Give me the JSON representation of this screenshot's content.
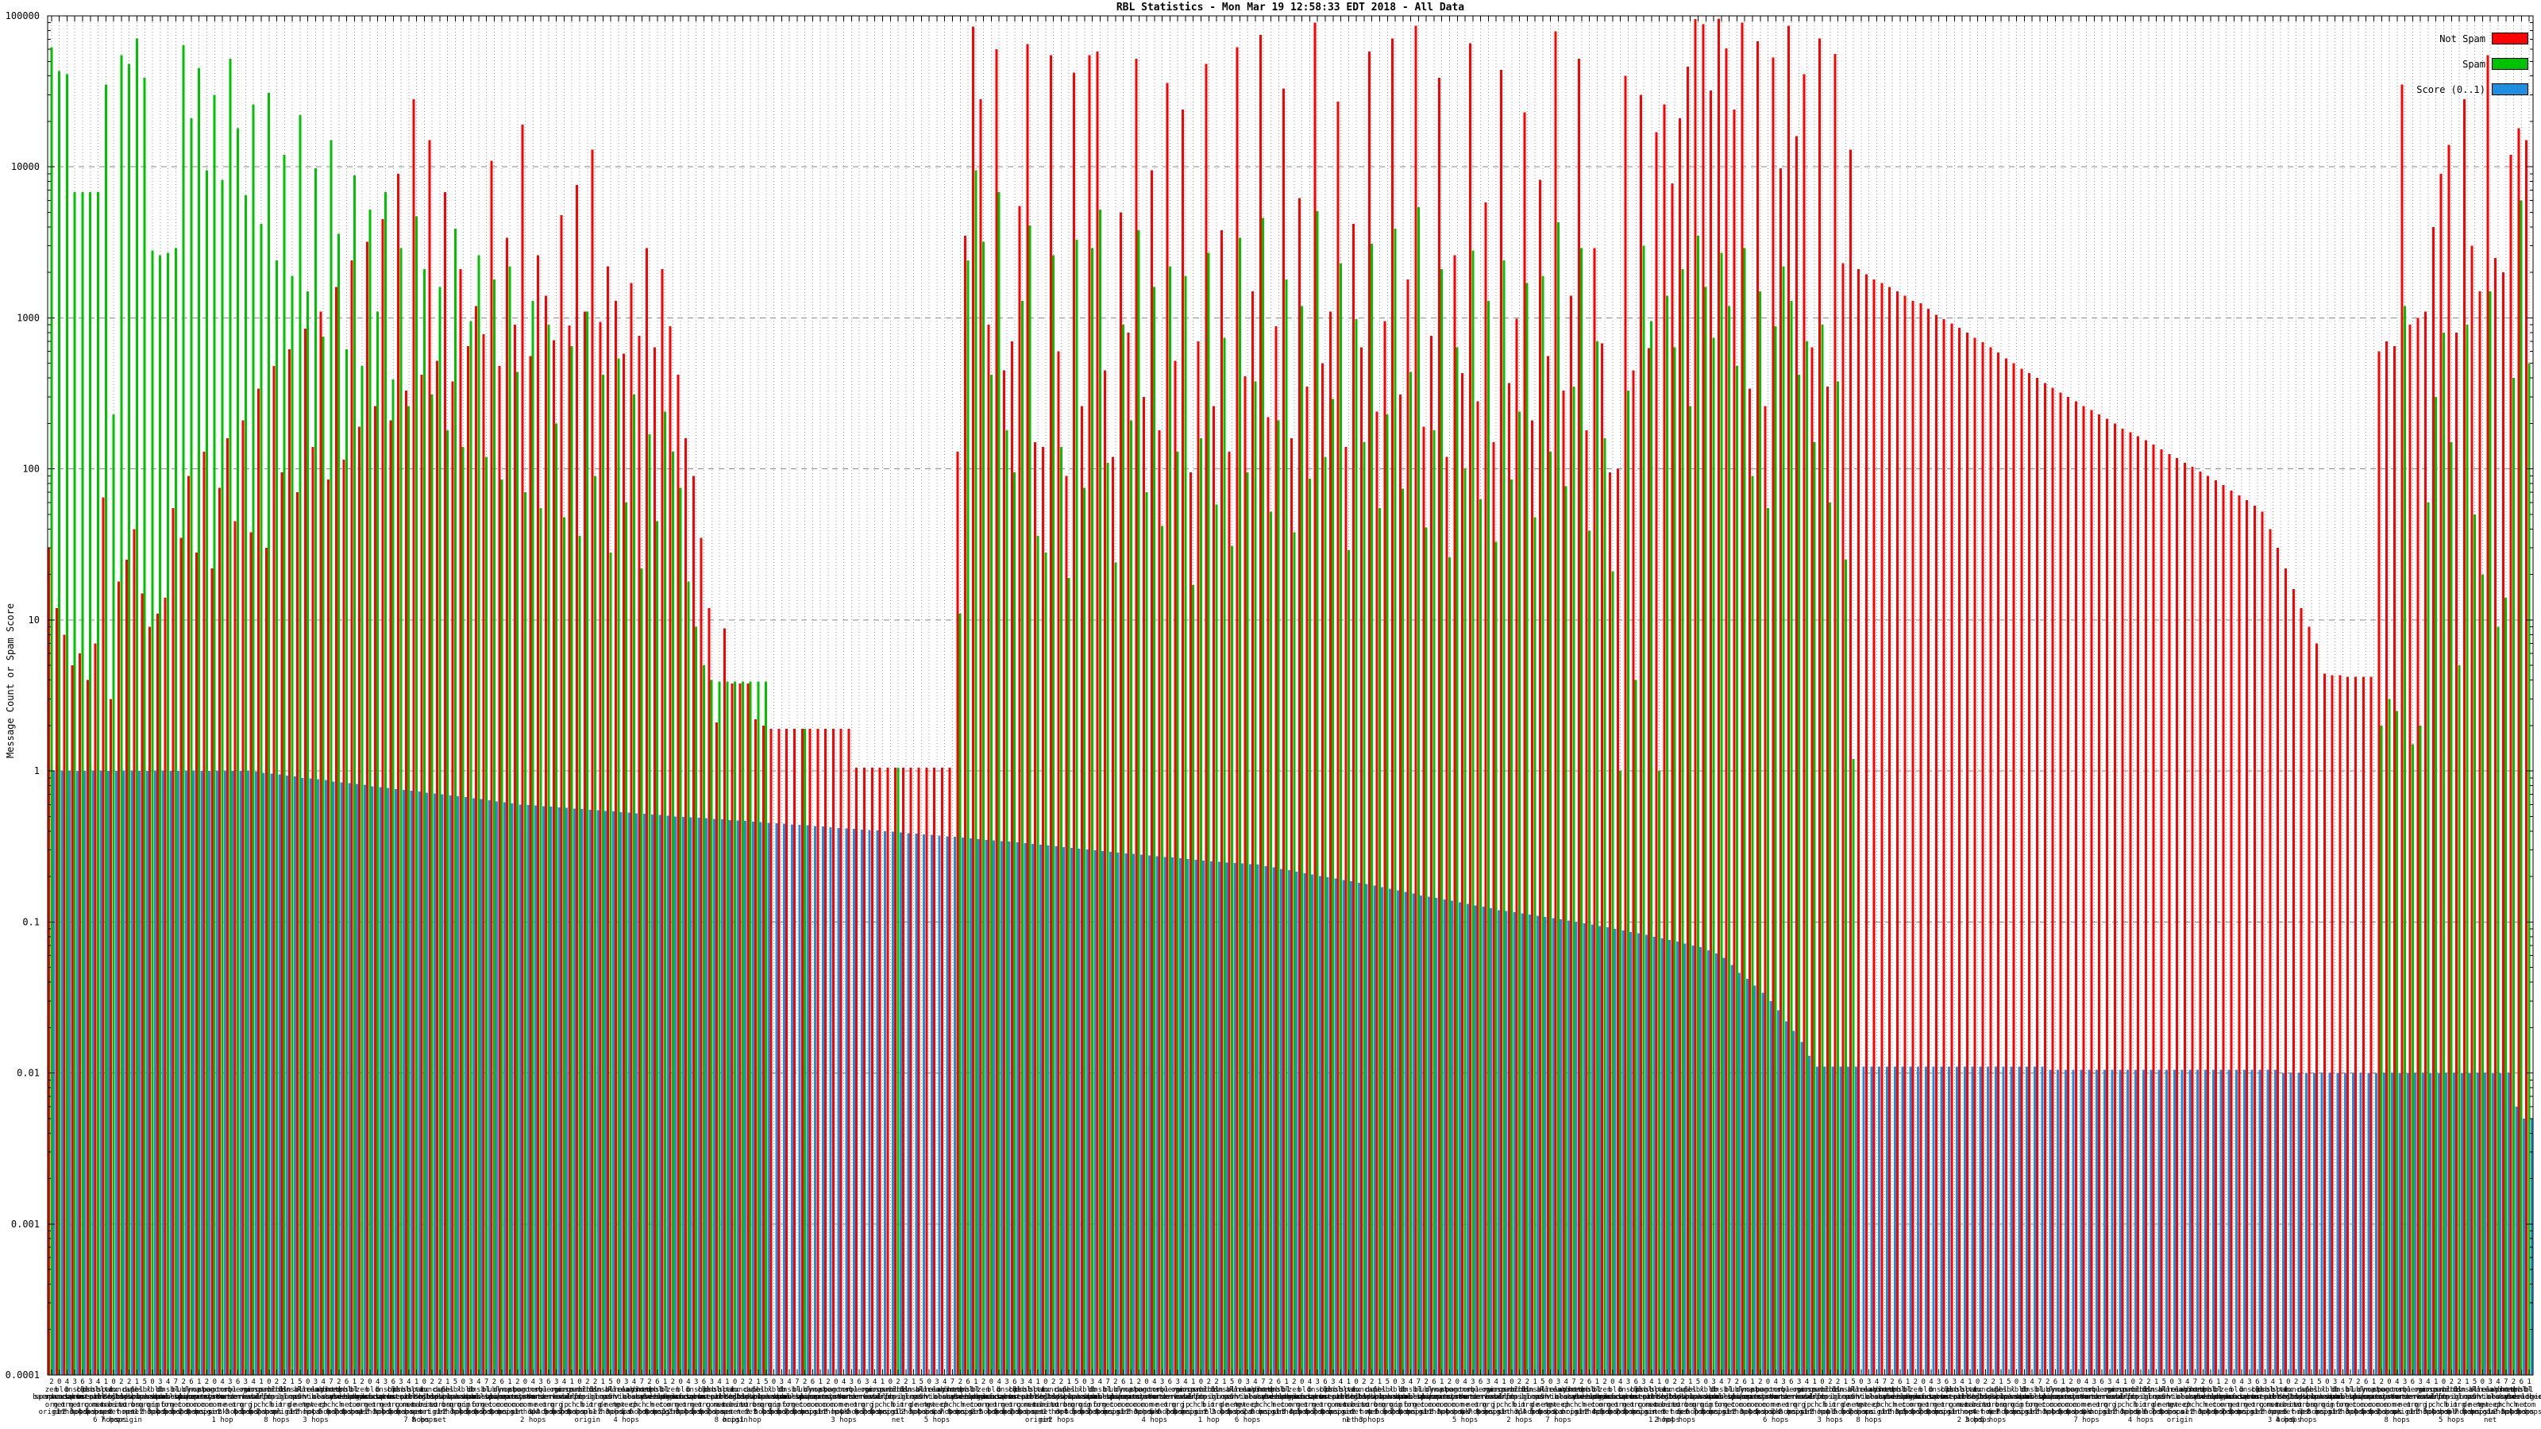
{
  "title": "RBL Statistics - Mon Mar 19 12:58:33 EDT 2018 - All Data",
  "y_axis": {
    "label": "Message Count or Spam Score",
    "ticks": [
      "100000",
      "10000",
      "1000",
      "100",
      "10",
      "1",
      "0.1",
      "0.01",
      "0.001",
      "0.0001"
    ]
  },
  "legend": [
    {
      "label": "Not Spam",
      "color": "#ff0000"
    },
    {
      "label": "Spam",
      "color": "#00c300"
    },
    {
      "label": "Score (0..1)",
      "color": "#1e8fe0"
    }
  ],
  "chart_data": {
    "type": "bar",
    "subtype": "impulses",
    "title": "RBL Statistics - Mon Mar 19 12:58:33 EDT 2018 - All Data",
    "xlabel": "",
    "ylabel": "Message Count or Spam Score",
    "yscale": "log",
    "ylim": [
      0.0001,
      100000
    ],
    "grid": true,
    "legend_position": "top-right",
    "n_bars": 320,
    "bar_pixel_pitch": 9.78,
    "category_note_rows": "2043634102215034726120436341022150347261204363410221503472612043634102215034726120436341022150347261204363410221503472612043634102215034726120436341022150347261204363410221503472612043634102215034726120436341022150347261204363410221503472612043634102215034726120436341022150347261204363410221503472612043634102215034726120",
    "category_pool": [
      "zen.spamhaus.org",
      "bl.spamcop.net",
      "b.barracudacentral.org",
      "dnsbl.sorbs.net",
      "cbl.abuseat.org",
      "psbl.surriel.com",
      "dnsbl-1.uceprotect.net",
      "spam.dnsbl.sorbs.net",
      "ix.dnsbl.manitu.net",
      "truncate.gbudb.net",
      "dul.dnsbl.sorbs.net",
      "pbl.spamhaus.org",
      "sbl.spamhaus.org",
      "xbl.spamhaus.org",
      "db.wpbl.info",
      "dnsbl.dronebl.org",
      "bl.mailspike.net",
      "ubl.unsubscore.com",
      "dyna.spamrats.com",
      "noptr.spamrats.com",
      "spam.spamrats.com",
      "bogons.cymru.com",
      "tor.dan.me.uk",
      "rbl.interserver.net",
      "query.senderbase.org",
      "opm.tornevall.org",
      "virus.rbl.jp",
      "wormrbl.imp.ch",
      "spamrbl.imp.ch",
      "virbl.dnsbl.bit.nl",
      "dsn.rfc-ignorant.org",
      "dnsbl.inps.de",
      "all.s5h.net",
      "korea.services.net",
      "relays.bl.gweep.ca",
      "combined.abuse.ch",
      "drone.abuse.ch",
      "httpbl.abuse.ch",
      "dnsbl.cyberlogic.net",
      "bl.deadbeef.com"
    ],
    "category_suffixes": [
      "origin",
      "net",
      "1 hop",
      "2 hops",
      "3 hops",
      "4 hops",
      "5 hops",
      "6 hops",
      "7 hops",
      "8 hops"
    ],
    "series": [
      {
        "name": "Not Spam",
        "color": "#ff0000",
        "values": [
          30,
          12,
          8,
          5,
          6,
          4,
          7,
          65,
          3,
          18,
          25,
          40,
          15,
          9,
          11,
          14,
          55,
          35,
          90,
          28,
          130,
          22,
          75,
          160,
          45,
          210,
          38,
          340,
          30,
          480,
          95,
          620,
          70,
          850,
          140,
          1100,
          85,
          1600,
          115,
          2400,
          190,
          3200,
          260,
          4500,
          210,
          9000,
          330,
          28000,
          420,
          15000,
          520,
          6800,
          380,
          2100,
          650,
          1200,
          780,
          11000,
          480,
          3400,
          900,
          19000,
          560,
          2600,
          1400,
          710,
          4800,
          890,
          7600,
          1100,
          13000,
          940,
          2200,
          1300,
          580,
          1700,
          760,
          2900,
          640,
          2100,
          880,
          420,
          160,
          90,
          35,
          12,
          2.1,
          8.8,
          3.8,
          3.8,
          3.8,
          2.2,
          2,
          1.9,
          1.9,
          1.9,
          1.9,
          1.9,
          1.9,
          1.9,
          1.9,
          1.9,
          1.9,
          1.9,
          1.05,
          1.05,
          1.05,
          1.05,
          1.05,
          1.05,
          1.05,
          1.05,
          1.05,
          1.05,
          1.05,
          1.05,
          1.05,
          130,
          3500,
          85000,
          28000,
          900,
          60000,
          450,
          700,
          5500,
          65000,
          150,
          140,
          55000,
          600,
          90,
          42000,
          260,
          55000,
          58000,
          450,
          120,
          5000,
          800,
          52000,
          300,
          9500,
          180,
          36000,
          520,
          24000,
          95,
          700,
          48000,
          260,
          3800,
          130,
          62000,
          410,
          1500,
          75000,
          220,
          880,
          33000,
          160,
          6200,
          350,
          90000,
          500,
          1100,
          27000,
          140,
          4200,
          640,
          58000,
          240,
          950,
          71000,
          310,
          1800,
          86000,
          190,
          760,
          39000,
          120,
          2600,
          430,
          66000,
          280,
          5800,
          150,
          44000,
          370,
          990,
          23000,
          210,
          8200,
          560,
          79000,
          330,
          1400,
          52000,
          180,
          2900,
          680,
          95,
          100,
          40000,
          450,
          30000,
          630,
          17000,
          26000,
          7800,
          21000,
          46000,
          95000,
          88000,
          32000,
          96000,
          61000,
          24000,
          90000,
          340,
          68000,
          260,
          53000,
          9800,
          86000,
          16000,
          41000,
          640,
          71000,
          350,
          56000,
          2300,
          13000,
          2100,
          1950,
          1800,
          1700,
          1600,
          1500,
          1400,
          1300,
          1250,
          1150,
          1050,
          980,
          920,
          860,
          800,
          740,
          690,
          640,
          590,
          540,
          500,
          460,
          430,
          400,
          370,
          345,
          320,
          300,
          280,
          260,
          245,
          230,
          215,
          200,
          185,
          175,
          165,
          155,
          145,
          135,
          125,
          118,
          110,
          103,
          96,
          90,
          84,
          78,
          72,
          67,
          62,
          57,
          52,
          40,
          30,
          22,
          16,
          12,
          9,
          7,
          4.4,
          4.3,
          4.3,
          4.2,
          4.2,
          4.2,
          4.2,
          600,
          700,
          650,
          35000,
          900,
          1000,
          1100,
          4000,
          9000,
          14000,
          800,
          28000,
          3000,
          1500,
          55000,
          2500,
          2000,
          12000,
          18000,
          15000
        ]
      },
      {
        "name": "Spam",
        "color": "#00c300",
        "values": [
          62000,
          43000,
          41000,
          6800,
          6800,
          6800,
          6800,
          35000,
          230,
          55000,
          48000,
          71000,
          39000,
          2800,
          2600,
          2700,
          2900,
          64000,
          21000,
          45000,
          9500,
          30000,
          8200,
          52000,
          18000,
          6500,
          26000,
          4200,
          31000,
          2400,
          12000,
          1900,
          22000,
          1500,
          9800,
          750,
          15000,
          3600,
          620,
          8800,
          480,
          5200,
          1100,
          6800,
          390,
          2900,
          260,
          4700,
          2100,
          310,
          1600,
          180,
          3900,
          140,
          950,
          2600,
          120,
          1800,
          85,
          2200,
          440,
          70,
          1300,
          55,
          900,
          200,
          48,
          650,
          36,
          1100,
          90,
          420,
          28,
          540,
          60,
          310,
          22,
          170,
          45,
          240,
          130,
          75,
          18,
          9,
          5,
          4,
          3.9,
          3.9,
          3.9,
          3.9,
          3.9,
          3.9,
          3.9,
          0,
          0,
          0,
          0,
          1.9,
          0,
          0,
          0,
          0,
          0,
          0,
          0,
          0,
          0,
          0,
          0,
          1.05,
          0,
          0,
          0,
          0,
          0,
          0,
          0,
          11,
          2400,
          9500,
          3200,
          420,
          6800,
          180,
          95,
          1300,
          4100,
          36,
          28,
          2600,
          140,
          19,
          3300,
          75,
          2900,
          5200,
          110,
          24,
          900,
          210,
          3800,
          70,
          1600,
          42,
          2200,
          130,
          1900,
          17,
          160,
          2700,
          58,
          740,
          31,
          3400,
          95,
          380,
          4600,
          52,
          210,
          1800,
          38,
          1200,
          86,
          5100,
          120,
          290,
          2300,
          29,
          980,
          150,
          3100,
          55,
          230,
          3900,
          74,
          440,
          5400,
          41,
          180,
          2100,
          26,
          640,
          100,
          2800,
          63,
          1300,
          33,
          2400,
          85,
          240,
          1700,
          48,
          1900,
          130,
          4300,
          77,
          350,
          2900,
          39,
          700,
          160,
          21,
          1,
          330,
          4,
          3000,
          950,
          1,
          1400,
          640,
          2100,
          260,
          3500,
          1600,
          740,
          2700,
          1200,
          480,
          2900,
          90,
          1500,
          55,
          880,
          2200,
          1300,
          420,
          700,
          150,
          900,
          60,
          380,
          25,
          1.2,
          0,
          0,
          0,
          0,
          0,
          0,
          0,
          0,
          0,
          0,
          0,
          0,
          0,
          0,
          0,
          0,
          0,
          0,
          0,
          0,
          0,
          0,
          0,
          0,
          0,
          0,
          0,
          0,
          0,
          0,
          0,
          0,
          0,
          0,
          0,
          0,
          0,
          0,
          0,
          0,
          0,
          0,
          0,
          0,
          0,
          0,
          0,
          0,
          0,
          0,
          0,
          0,
          0,
          0,
          0,
          0,
          0,
          0,
          0,
          0,
          0,
          0,
          0,
          0,
          0,
          0,
          0,
          2,
          3,
          2.5,
          1200,
          1.5,
          2,
          60,
          300,
          800,
          150,
          5,
          900,
          50,
          20,
          1500,
          9,
          14,
          400,
          6000,
          500
        ]
      },
      {
        "name": "Score (0..1)",
        "color": "#1e8fe0",
        "values": [
          1,
          1,
          1,
          1,
          1,
          1,
          1,
          1,
          1,
          1,
          1,
          1,
          1,
          1,
          1,
          1,
          1,
          1,
          1,
          1,
          1,
          1,
          1,
          1,
          1,
          1,
          0.99,
          0.97,
          0.96,
          0.95,
          0.93,
          0.92,
          0.9,
          0.89,
          0.88,
          0.87,
          0.85,
          0.84,
          0.83,
          0.82,
          0.81,
          0.79,
          0.78,
          0.77,
          0.76,
          0.75,
          0.74,
          0.73,
          0.72,
          0.71,
          0.7,
          0.69,
          0.68,
          0.67,
          0.66,
          0.65,
          0.64,
          0.63,
          0.62,
          0.61,
          0.6,
          0.595,
          0.59,
          0.585,
          0.58,
          0.575,
          0.57,
          0.565,
          0.56,
          0.555,
          0.55,
          0.545,
          0.54,
          0.535,
          0.53,
          0.525,
          0.52,
          0.515,
          0.51,
          0.505,
          0.5,
          0.497,
          0.493,
          0.49,
          0.486,
          0.482,
          0.478,
          0.474,
          0.47,
          0.466,
          0.462,
          0.458,
          0.454,
          0.45,
          0.447,
          0.443,
          0.44,
          0.436,
          0.432,
          0.428,
          0.424,
          0.42,
          0.417,
          0.413,
          0.41,
          0.407,
          0.403,
          0.4,
          0.396,
          0.392,
          0.388,
          0.384,
          0.38,
          0.377,
          0.373,
          0.37,
          0.366,
          0.362,
          0.358,
          0.354,
          0.35,
          0.347,
          0.343,
          0.34,
          0.336,
          0.332,
          0.328,
          0.324,
          0.32,
          0.317,
          0.313,
          0.31,
          0.306,
          0.302,
          0.298,
          0.295,
          0.291,
          0.288,
          0.285,
          0.282,
          0.279,
          0.276,
          0.273,
          0.27,
          0.267,
          0.264,
          0.261,
          0.258,
          0.255,
          0.252,
          0.25,
          0.248,
          0.246,
          0.244,
          0.242,
          0.24,
          0.235,
          0.23,
          0.225,
          0.22,
          0.215,
          0.21,
          0.206,
          0.202,
          0.198,
          0.194,
          0.19,
          0.186,
          0.182,
          0.178,
          0.174,
          0.17,
          0.166,
          0.162,
          0.158,
          0.154,
          0.15,
          0.147,
          0.144,
          0.141,
          0.138,
          0.135,
          0.132,
          0.129,
          0.126,
          0.123,
          0.12,
          0.118,
          0.116,
          0.114,
          0.112,
          0.11,
          0.108,
          0.106,
          0.104,
          0.102,
          0.1,
          0.098,
          0.096,
          0.094,
          0.092,
          0.09,
          0.088,
          0.086,
          0.084,
          0.082,
          0.08,
          0.078,
          0.076,
          0.074,
          0.072,
          0.07,
          0.068,
          0.065,
          0.062,
          0.058,
          0.052,
          0.046,
          0.042,
          0.038,
          0.034,
          0.03,
          0.026,
          0.022,
          0.019,
          0.016,
          0.013,
          0.011,
          0.011,
          0.011,
          0.011,
          0.011,
          0.011,
          0.011,
          0.011,
          0.011,
          0.011,
          0.011,
          0.011,
          0.011,
          0.011,
          0.011,
          0.011,
          0.011,
          0.011,
          0.011,
          0.011,
          0.011,
          0.011,
          0.011,
          0.011,
          0.011,
          0.011,
          0.011,
          0.011,
          0.011,
          0.011,
          0.0105,
          0.0105,
          0.0105,
          0.0105,
          0.0105,
          0.0105,
          0.0105,
          0.0105,
          0.0105,
          0.0105,
          0.0105,
          0.0105,
          0.0105,
          0.0105,
          0.0105,
          0.0105,
          0.0105,
          0.0105,
          0.0105,
          0.0105,
          0.0105,
          0.0105,
          0.0105,
          0.0105,
          0.0105,
          0.0105,
          0.0105,
          0.0105,
          0.0105,
          0.0105,
          0.01,
          0.01,
          0.01,
          0.01,
          0.01,
          0.01,
          0.01,
          0.01,
          0.01,
          0.01,
          0.01,
          0.01,
          0.01,
          0.01,
          0.01,
          0.01,
          0.01,
          0.01,
          0.01,
          0.01,
          0.01,
          0.01,
          0.01,
          0.01,
          0.01,
          0.01,
          0.01,
          0.01,
          0.01,
          0.01,
          0.006,
          0.005,
          0.005
        ]
      }
    ]
  }
}
